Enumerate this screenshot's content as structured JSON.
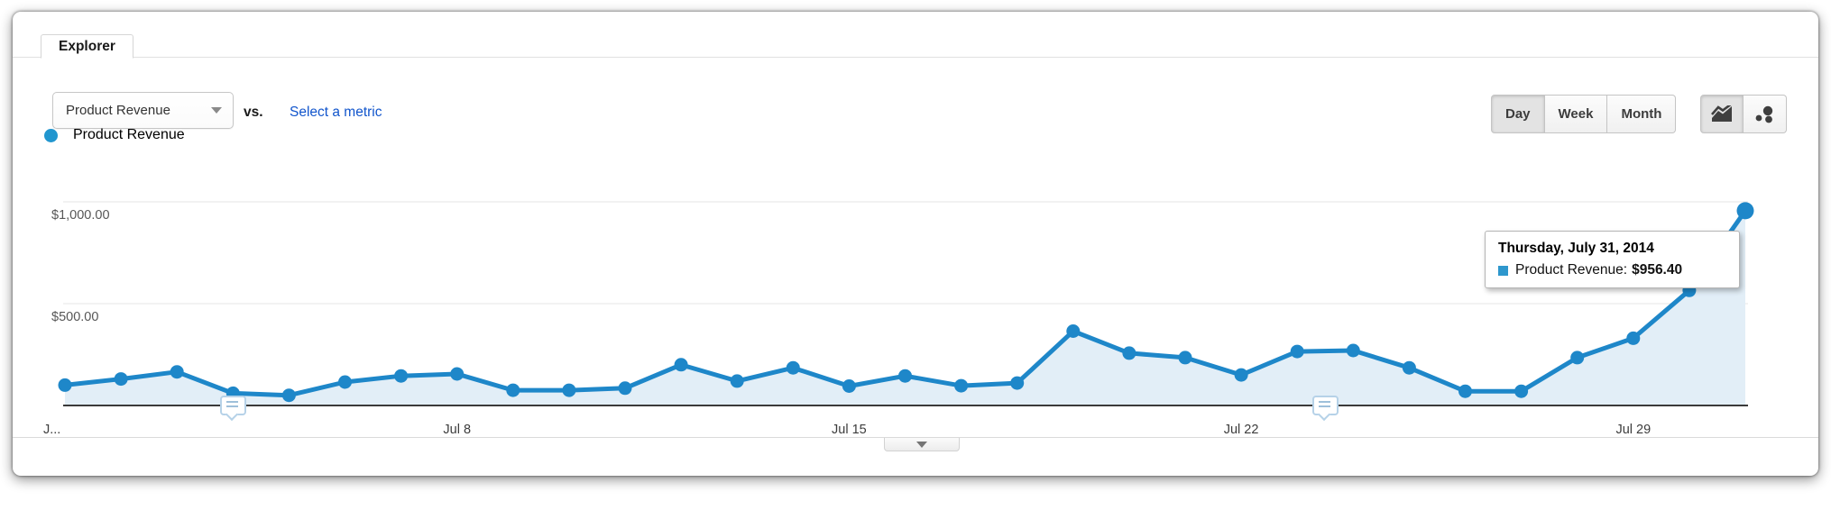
{
  "tab_label": "Explorer",
  "controls": {
    "metric_dropdown_value": "Product Revenue",
    "vs_label": "vs.",
    "select_metric_link": "Select a metric",
    "granularity_options": [
      "Day",
      "Week",
      "Month"
    ],
    "granularity_selected": "Day",
    "chart_type_options": [
      "line-chart-icon",
      "motion-chart-icon"
    ],
    "chart_type_selected": "line-chart-icon",
    "dropdown_caret_icon": "chevron-down-icon"
  },
  "legend": {
    "label": "Product Revenue",
    "color": "#2196cf"
  },
  "tooltip": {
    "title": "Thursday, July 31, 2014",
    "series_label": "Product Revenue:",
    "value": "$956.40",
    "swatch_color": "#2e97cd"
  },
  "chart_data": {
    "type": "area",
    "title": "",
    "series_name": "Product Revenue",
    "x": [
      "Jul 1",
      "Jul 2",
      "Jul 3",
      "Jul 4",
      "Jul 5",
      "Jul 6",
      "Jul 7",
      "Jul 8",
      "Jul 9",
      "Jul 10",
      "Jul 11",
      "Jul 12",
      "Jul 13",
      "Jul 14",
      "Jul 15",
      "Jul 16",
      "Jul 17",
      "Jul 18",
      "Jul 19",
      "Jul 20",
      "Jul 21",
      "Jul 22",
      "Jul 23",
      "Jul 24",
      "Jul 25",
      "Jul 26",
      "Jul 27",
      "Jul 28",
      "Jul 29",
      "Jul 30",
      "Jul 31"
    ],
    "values": [
      100,
      130,
      165,
      60,
      50,
      115,
      145,
      155,
      75,
      75,
      85,
      200,
      120,
      185,
      95,
      145,
      97,
      110,
      365,
      257,
      235,
      150,
      265,
      270,
      185,
      70,
      70,
      235,
      330,
      565,
      956.4
    ],
    "y_ticks": [
      {
        "value": 500,
        "label": "$500.00"
      },
      {
        "value": 1000,
        "label": "$1,000.00"
      }
    ],
    "x_ticks": [
      {
        "day": 1,
        "label": "J...",
        "align": "left"
      },
      {
        "day": 8,
        "label": "Jul 8"
      },
      {
        "day": 15,
        "label": "Jul 15"
      },
      {
        "day": 22,
        "label": "Jul 22"
      },
      {
        "day": 29,
        "label": "Jul 29"
      }
    ],
    "ylim": [
      0,
      1200
    ],
    "grid": true,
    "legend_position": "top-left",
    "annotation_marker_days": [
      4,
      23.5
    ],
    "line_color": "#1e87c9",
    "area_color": "#e2eef7",
    "highlighted_point": {
      "x": "Jul 31",
      "value": 956.4,
      "display": "$956.40"
    }
  },
  "footer": {
    "collapse_tooltip": "collapse"
  }
}
